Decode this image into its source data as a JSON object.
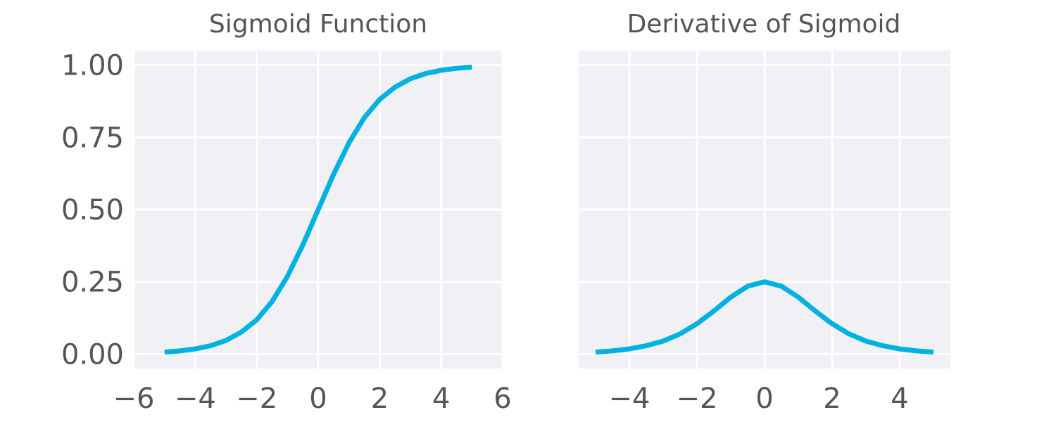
{
  "chart_data": [
    {
      "type": "line",
      "title": "Sigmoid Function",
      "xlabel": "",
      "ylabel": "",
      "xlim": [
        -6,
        6
      ],
      "ylim": [
        -0.05,
        1.05
      ],
      "grid": true,
      "xticks": [
        -6,
        -4,
        -2,
        0,
        2,
        4,
        6
      ],
      "xtick_labels": [
        "−6",
        "−4",
        "−2",
        "0",
        "2",
        "4",
        "6"
      ],
      "yticks": [
        0,
        0.25,
        0.5,
        0.75,
        1.0
      ],
      "ytick_labels": [
        "0.00",
        "0.25",
        "0.50",
        "0.75",
        "1.00"
      ],
      "series": [
        {
          "color": "#00b2e1",
          "x": [
            -5,
            -4.5,
            -4,
            -3.5,
            -3,
            -2.5,
            -2,
            -1.5,
            -1,
            -0.5,
            0,
            0.5,
            1,
            1.5,
            2,
            2.5,
            3,
            3.5,
            4,
            4.5,
            5
          ],
          "y": [
            0.007,
            0.011,
            0.018,
            0.029,
            0.047,
            0.076,
            0.119,
            0.182,
            0.269,
            0.378,
            0.5,
            0.622,
            0.731,
            0.818,
            0.881,
            0.924,
            0.953,
            0.971,
            0.982,
            0.989,
            0.993
          ]
        }
      ]
    },
    {
      "type": "line",
      "title": "Derivative of Sigmoid",
      "xlabel": "",
      "ylabel": "",
      "xlim": [
        -5.5,
        5.5
      ],
      "ylim": [
        -0.05,
        1.05
      ],
      "grid": true,
      "xticks": [
        -4,
        -2,
        0,
        2,
        4
      ],
      "xtick_labels": [
        "−4",
        "−2",
        "0",
        "2",
        "4"
      ],
      "yticks": [
        0,
        0.25,
        0.5,
        0.75,
        1.0
      ],
      "ytick_labels": [],
      "series": [
        {
          "color": "#00b2e1",
          "x": [
            -5,
            -4.5,
            -4,
            -3.5,
            -3,
            -2.5,
            -2,
            -1.5,
            -1,
            -0.5,
            0,
            0.5,
            1,
            1.5,
            2,
            2.5,
            3,
            3.5,
            4,
            4.5,
            5
          ],
          "y": [
            0.007,
            0.011,
            0.018,
            0.029,
            0.045,
            0.07,
            0.105,
            0.149,
            0.197,
            0.235,
            0.25,
            0.235,
            0.197,
            0.149,
            0.105,
            0.07,
            0.045,
            0.029,
            0.018,
            0.011,
            0.007
          ]
        }
      ]
    }
  ]
}
